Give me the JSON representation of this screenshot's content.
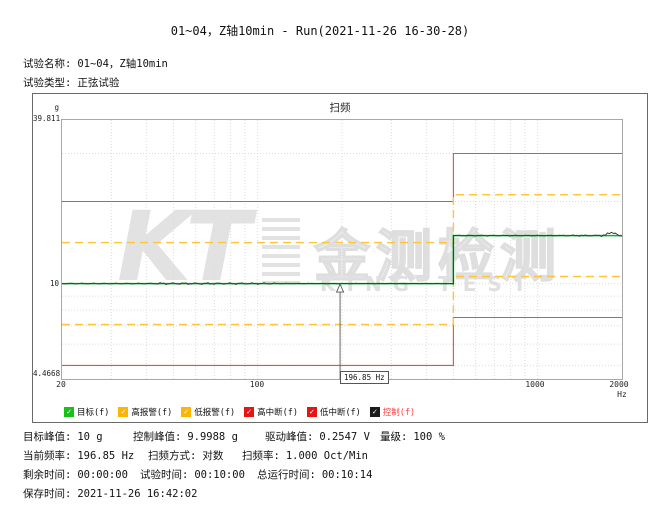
{
  "header": {
    "title": "01~04，Z轴10min - Run(2021-11-26 16-30-28)",
    "test_name_label": "试验名称:",
    "test_name": "01~04，Z轴10min",
    "test_type_label": "试验类型:",
    "test_type": "正弦试验"
  },
  "chart": {
    "title": "扫频",
    "y_unit": "g",
    "y_ticks": [
      "39.811",
      "10",
      "4.4668"
    ],
    "x_ticks": [
      "20",
      "100",
      "1000",
      "2000"
    ],
    "x_unit": "Hz",
    "cursor_label": "196.85 Hz"
  },
  "chart_data": {
    "type": "line",
    "title": "扫频",
    "x_axis": {
      "unit": "Hz",
      "scale": "log",
      "min": 20,
      "max": 2000,
      "ticks": [
        20,
        100,
        1000,
        2000
      ],
      "gridlines": [
        30,
        40,
        50,
        60,
        70,
        80,
        90,
        100,
        200,
        300,
        400,
        500,
        600,
        700,
        800,
        900,
        1000
      ]
    },
    "y_axis": {
      "unit": "g",
      "scale": "log",
      "min": 4.4668,
      "max": 39.811,
      "ticks": [
        39.811,
        10,
        4.4668
      ],
      "gridlines": [
        5,
        6,
        7,
        8,
        9,
        10,
        20,
        30
      ]
    },
    "series": [
      {
        "name": "高中断(f)",
        "color": "#ff4242",
        "style": "solid",
        "width": 1.1,
        "noise": 0,
        "points": [
          [
            20,
            20
          ],
          [
            500,
            20
          ],
          [
            500,
            29.99
          ],
          [
            2000,
            29.99
          ]
        ]
      },
      {
        "name": "低中断(f)",
        "color": "#ff4242",
        "style": "solid",
        "width": 1.1,
        "noise": 0,
        "points": [
          [
            20,
            5.01
          ],
          [
            500,
            5.01
          ],
          [
            500,
            7.51
          ],
          [
            2000,
            7.51
          ]
        ]
      },
      {
        "name": "高报警(f)",
        "color": "#ffc43c",
        "style": "dashed",
        "width": 1.4,
        "noise": 0,
        "points": [
          [
            20,
            14.13
          ],
          [
            500,
            14.13
          ],
          [
            500,
            21.19
          ],
          [
            2000,
            21.19
          ]
        ]
      },
      {
        "name": "低报警(f)",
        "color": "#ffc43c",
        "style": "dashed",
        "width": 1.4,
        "noise": 0,
        "points": [
          [
            20,
            7.08
          ],
          [
            500,
            7.08
          ],
          [
            500,
            10.62
          ],
          [
            2000,
            10.62
          ]
        ]
      },
      {
        "name": "目标(f)",
        "color": "#00bc28",
        "style": "solid",
        "width": 1.5,
        "noise": 0,
        "points": [
          [
            20,
            10
          ],
          [
            500,
            10
          ],
          [
            500,
            15
          ],
          [
            2000,
            15
          ]
        ]
      },
      {
        "name": "控制(f)",
        "color": "#3a3a3a",
        "style": "solid",
        "width": 1,
        "noise": 1,
        "points": [
          [
            20,
            10
          ],
          [
            500,
            10
          ],
          [
            500,
            15
          ],
          [
            2000,
            15
          ]
        ]
      }
    ],
    "cursor": {
      "freq": 196.85,
      "value": 10,
      "label": "196.85 Hz"
    }
  },
  "legend": {
    "items": [
      {
        "label": "目标(f)",
        "box_color": "#17c117",
        "label_color": "#111111",
        "check": "✓"
      },
      {
        "label": "高报警(f)",
        "box_color": "#ffb400",
        "label_color": "#111111",
        "check": "✓"
      },
      {
        "label": "低报警(f)",
        "box_color": "#ffb400",
        "label_color": "#111111",
        "check": "✓"
      },
      {
        "label": "高中断(f)",
        "box_color": "#e81414",
        "label_color": "#111111",
        "check": "✓"
      },
      {
        "label": "低中断(f)",
        "box_color": "#e81414",
        "label_color": "#111111",
        "check": "✓"
      },
      {
        "label": "控制(f)",
        "box_color": "#1a1a1a",
        "label_color": "#ff4040",
        "check": "✓"
      }
    ]
  },
  "watermark": {
    "kt": "KT",
    "cn": "金测检测",
    "en": "KING TEST"
  },
  "status": {
    "row1": [
      {
        "label": "目标峰值:",
        "value": "10 g"
      },
      {
        "label": "控制峰值:",
        "value": "9.9988 g"
      },
      {
        "label": "驱动峰值:",
        "value": "0.2547 V"
      },
      {
        "label": "量级:",
        "value": "100 %"
      }
    ],
    "row2": [
      {
        "label": "当前频率:",
        "value": "196.85 Hz"
      },
      {
        "label": "扫频方式:",
        "value": "对数"
      },
      {
        "label": "扫频率:",
        "value": "1.000 Oct/Min"
      }
    ],
    "row3": [
      {
        "label": "剩余时间:",
        "value": "00:00:00"
      },
      {
        "label": "试验时间:",
        "value": "00:10:00"
      },
      {
        "label": "总运行时间:",
        "value": "00:10:14"
      }
    ],
    "row4": [
      {
        "label": "保存时间:",
        "value": "2021-11-26 16:42:02"
      }
    ]
  }
}
